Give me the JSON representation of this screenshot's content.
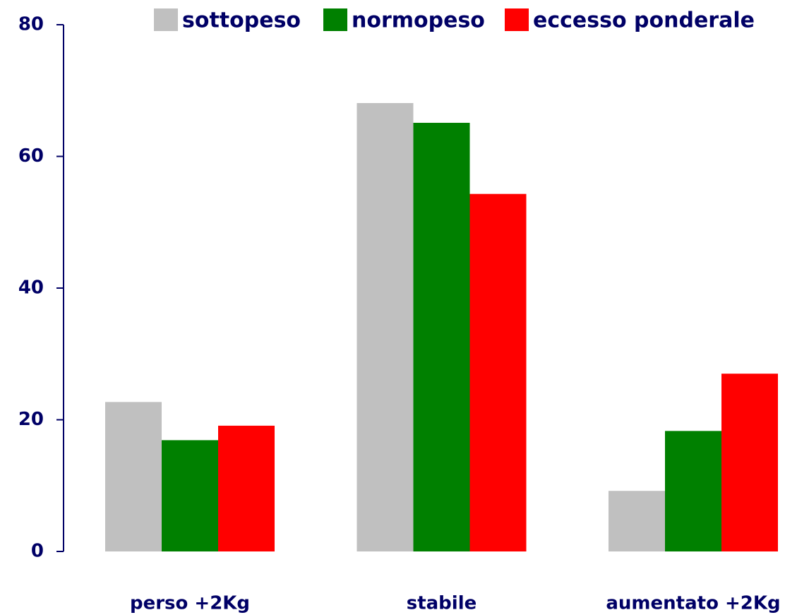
{
  "chart_data": {
    "type": "bar",
    "categories": [
      "perso +2Kg",
      "stabile",
      "aumentato +2Kg"
    ],
    "series": [
      {
        "name": "sottopeso",
        "color": "#c0c0c0",
        "values": [
          22.7,
          68.1,
          9.2
        ]
      },
      {
        "name": "normopeso",
        "color": "#008000",
        "values": [
          16.9,
          65.1,
          18.3
        ]
      },
      {
        "name": "eccesso ponderale",
        "color": "#ff0000",
        "values": [
          19.1,
          54.3,
          27.0
        ]
      }
    ],
    "ylim": [
      0,
      80
    ],
    "yticks": [
      0,
      20,
      40,
      60,
      80
    ],
    "grid": false,
    "legend": "top"
  }
}
